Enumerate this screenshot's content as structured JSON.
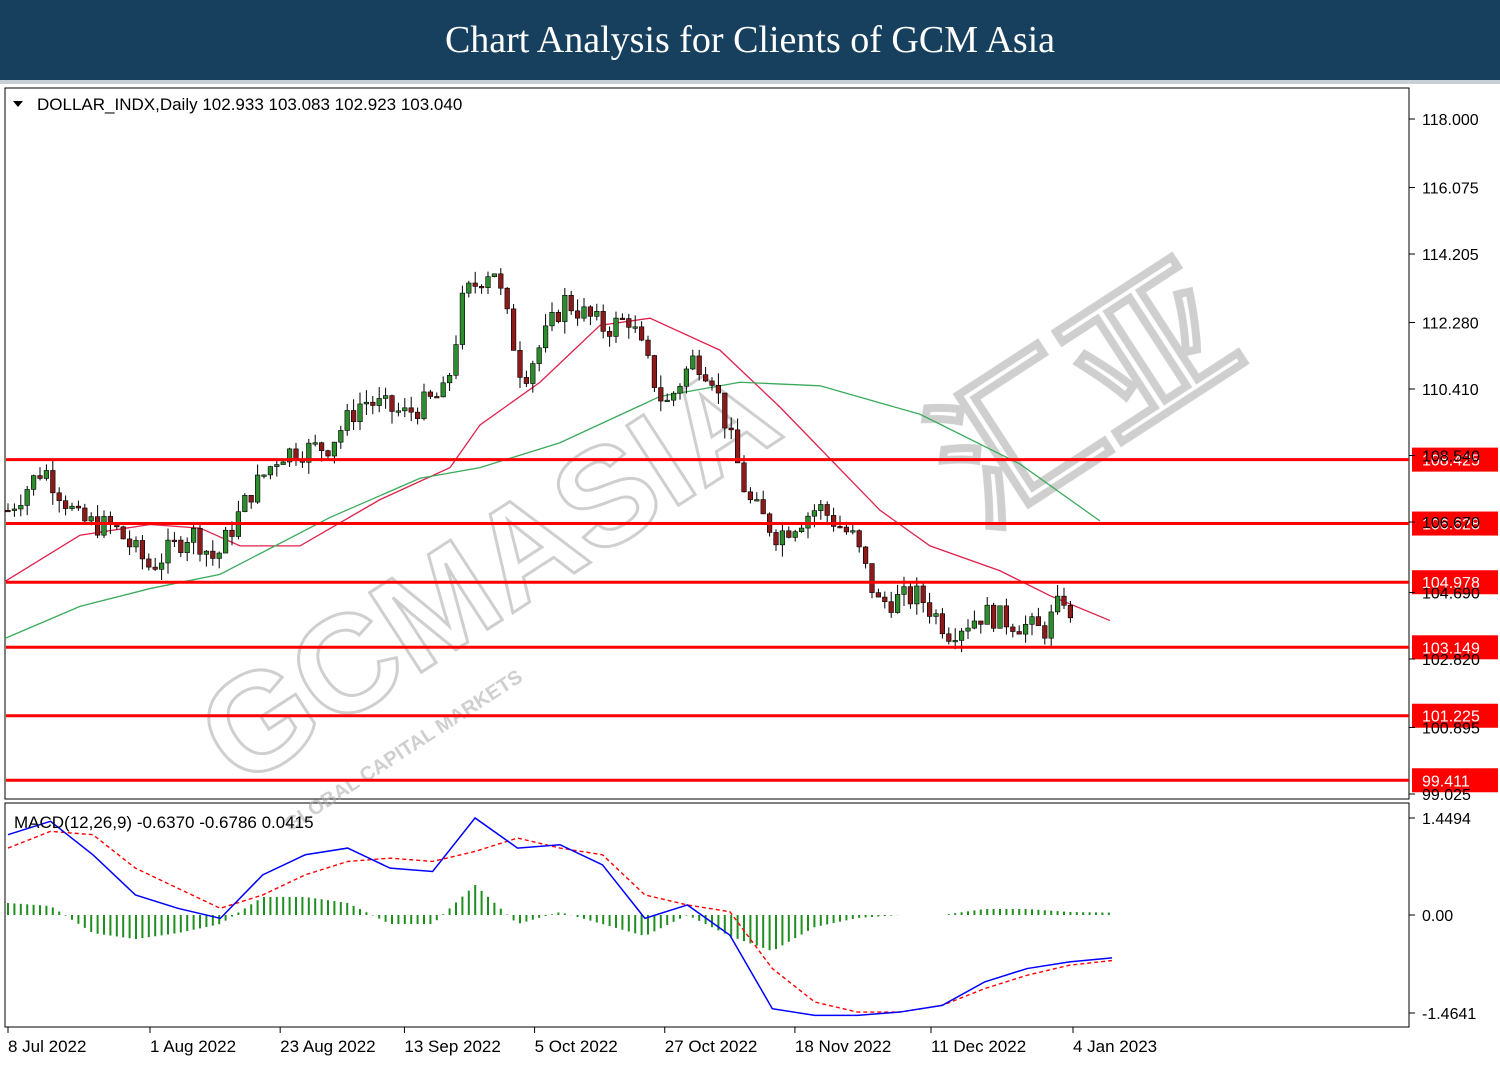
{
  "header": {
    "title": "Chart Analysis for Clients of GCM Asia"
  },
  "main_panel": {
    "symbol_line": "DOLLAR_INDX,Daily  102.933 103.083 102.923 103.040",
    "y_ticks": [
      "118.000",
      "116.075",
      "114.205",
      "112.280",
      "110.410",
      "108.540",
      "106.670",
      "104.690",
      "102.820",
      "100.895",
      "99.025"
    ],
    "watermark": "GCMASIA",
    "watermark_sub": "GLOBAL CAPITAL MARKETS",
    "watermark_cn": "汇亚"
  },
  "macd_panel": {
    "label": "MACD(12,26,9) -0.6370 -0.6786 0.0415",
    "y_ticks": [
      "1.4494",
      "0.00",
      "-1.4641"
    ]
  },
  "x_ticks": [
    "8 Jul 2022",
    "1 Aug 2022",
    "23 Aug 2022",
    "13 Sep 2022",
    "5 Oct 2022",
    "27 Oct 2022",
    "18 Nov 2022",
    "11 Dec 2022",
    "4 Jan 2023"
  ],
  "colors": {
    "banner": "#17405f",
    "level_line": "#ff0000",
    "bull": "#2e8b2e",
    "bear": "#8b1a1a",
    "ma_fast": "#e0204a",
    "ma_slow": "#3aaa5a",
    "macd": "#0000ff",
    "signal": "#ff0000",
    "hist": "#1e8f1e"
  },
  "chart_data": [
    {
      "type": "candlestick",
      "title": "DOLLAR_INDX,Daily",
      "ohlc_last": {
        "open": 102.933,
        "high": 103.083,
        "low": 102.923,
        "close": 103.04
      },
      "ylim": [
        99.025,
        118.0
      ],
      "x_range": [
        "8 Jul 2022",
        "4 Jan 2023"
      ],
      "horizontal_levels": [
        108.425,
        106.628,
        104.978,
        103.149,
        101.225,
        99.411
      ],
      "close_path": [
        {
          "x": "8 Jul 2022",
          "y": 107.0
        },
        {
          "x": "14 Jul 2022",
          "y": 108.2
        },
        {
          "x": "20 Jul 2022",
          "y": 106.7
        },
        {
          "x": "26 Jul 2022",
          "y": 106.5
        },
        {
          "x": "1 Aug 2022",
          "y": 105.4
        },
        {
          "x": "8 Aug 2022",
          "y": 106.4
        },
        {
          "x": "12 Aug 2022",
          "y": 105.6
        },
        {
          "x": "18 Aug 2022",
          "y": 107.5
        },
        {
          "x": "23 Aug 2022",
          "y": 108.6
        },
        {
          "x": "31 Aug 2022",
          "y": 108.8
        },
        {
          "x": "6 Sep 2022",
          "y": 110.1
        },
        {
          "x": "13 Sep 2022",
          "y": 109.7
        },
        {
          "x": "20 Sep 2022",
          "y": 110.3
        },
        {
          "x": "23 Sep 2022",
          "y": 113.0
        },
        {
          "x": "28 Sep 2022",
          "y": 113.9
        },
        {
          "x": "3 Oct 2022",
          "y": 110.7
        },
        {
          "x": "10 Oct 2022",
          "y": 112.9
        },
        {
          "x": "17 Oct 2022",
          "y": 112.1
        },
        {
          "x": "21 Oct 2022",
          "y": 112.4
        },
        {
          "x": "27 Oct 2022",
          "y": 109.9
        },
        {
          "x": "1 Nov 2022",
          "y": 111.3
        },
        {
          "x": "4 Nov 2022",
          "y": 110.8
        },
        {
          "x": "10 Nov 2022",
          "y": 107.3
        },
        {
          "x": "15 Nov 2022",
          "y": 106.3
        },
        {
          "x": "22 Nov 2022",
          "y": 107.1
        },
        {
          "x": "28 Nov 2022",
          "y": 106.2
        },
        {
          "x": "2 Dec 2022",
          "y": 104.4
        },
        {
          "x": "9 Dec 2022",
          "y": 104.6
        },
        {
          "x": "14 Dec 2022",
          "y": 103.6
        },
        {
          "x": "20 Dec 2022",
          "y": 104.1
        },
        {
          "x": "30 Dec 2022",
          "y": 103.6
        },
        {
          "x": "3 Jan 2023",
          "y": 104.7
        },
        {
          "x": "4 Jan 2023",
          "y": 103.04
        }
      ],
      "series": [
        {
          "name": "MA fast",
          "values": [
            105.0,
            106.3,
            106.6,
            106.5,
            106.0,
            106.0,
            107.3,
            108.2,
            109.4,
            110.6,
            112.2,
            112.4,
            111.5,
            109.9,
            107.0,
            106.0,
            105.3,
            104.6,
            103.9
          ]
        },
        {
          "name": "MA slow",
          "values": [
            103.4,
            104.3,
            104.8,
            105.2,
            106.8,
            107.9,
            108.2,
            108.9,
            110.2,
            110.6,
            110.5,
            109.7,
            108.3,
            106.7
          ]
        }
      ]
    },
    {
      "type": "line",
      "title": "MACD(12,26,9)",
      "values_last": {
        "macd": -0.637,
        "signal": -0.6786,
        "hist": 0.0415
      },
      "ylim": [
        -1.4641,
        1.4494
      ],
      "series": [
        {
          "name": "MACD",
          "values": [
            1.2,
            1.4,
            0.9,
            0.3,
            0.1,
            -0.05,
            0.6,
            0.9,
            1.0,
            0.7,
            0.65,
            1.45,
            1.0,
            1.05,
            0.75,
            -0.05,
            0.15,
            -0.3,
            -1.4,
            -1.5,
            -1.5,
            -1.45,
            -1.35,
            -1.0,
            -0.8,
            -0.7,
            -0.64
          ]
        },
        {
          "name": "Signal",
          "values": [
            1.0,
            1.25,
            1.2,
            0.7,
            0.4,
            0.1,
            0.3,
            0.6,
            0.8,
            0.85,
            0.8,
            0.95,
            1.15,
            1.0,
            0.9,
            0.3,
            0.15,
            0.05,
            -0.8,
            -1.3,
            -1.45,
            -1.45,
            -1.35,
            -1.1,
            -0.9,
            -0.75,
            -0.68
          ]
        }
      ]
    }
  ]
}
